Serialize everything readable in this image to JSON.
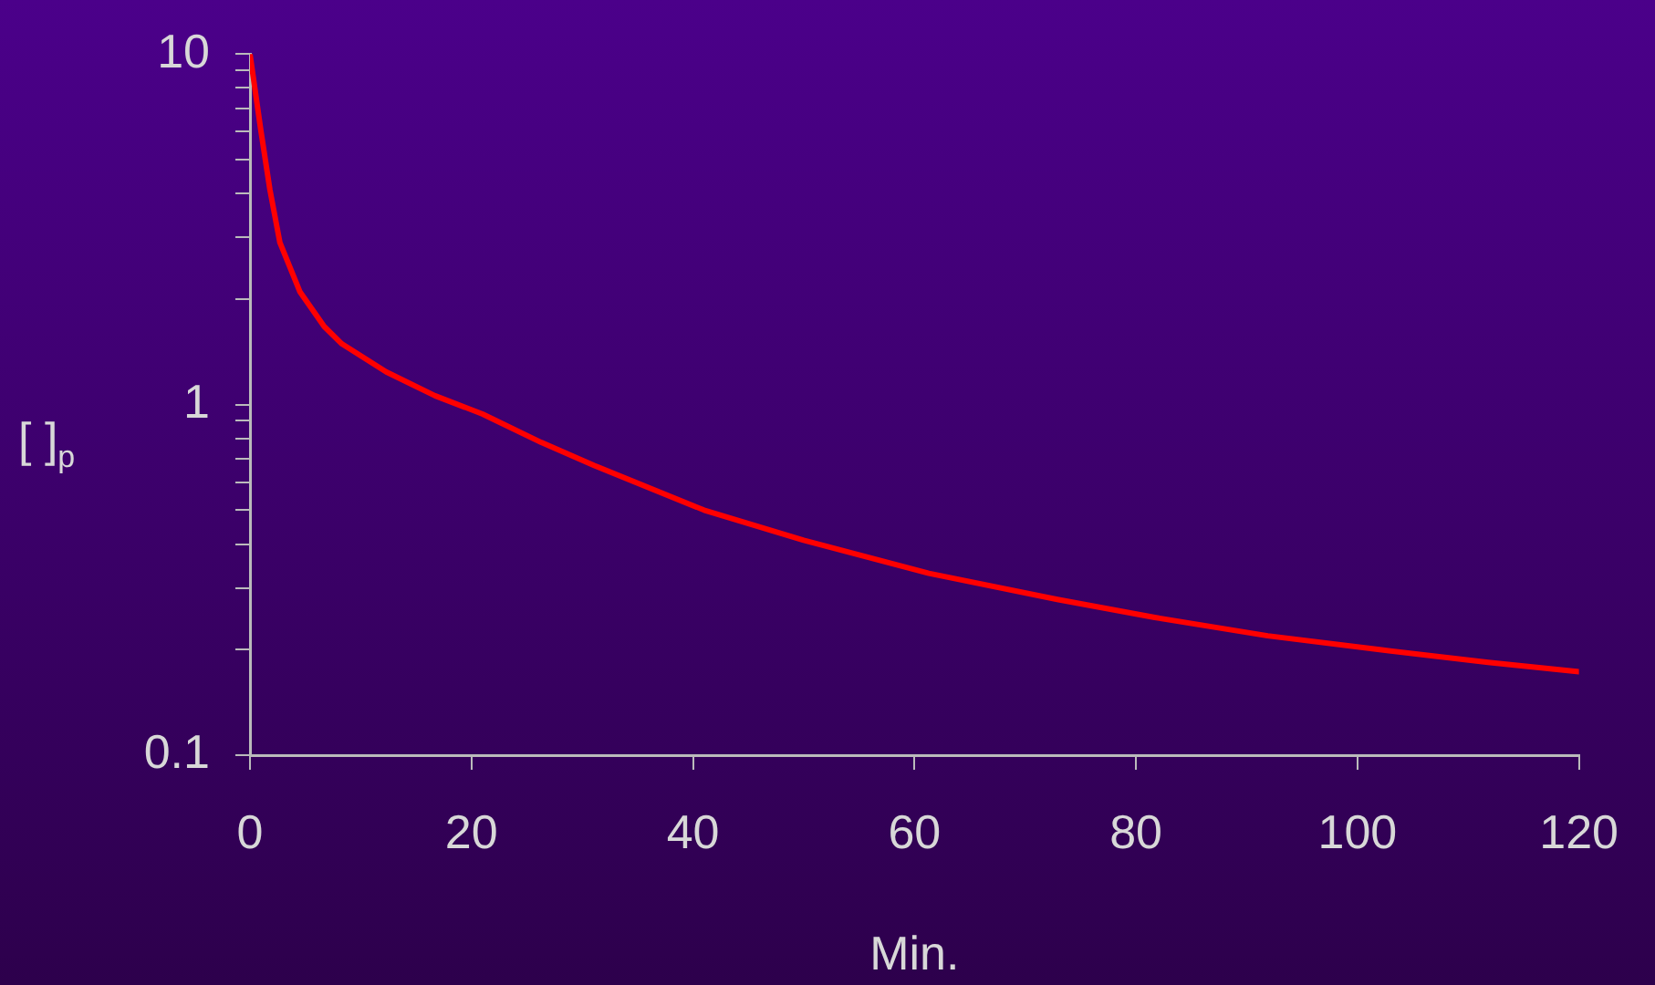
{
  "chart_data": {
    "type": "line",
    "xlabel": "Min.",
    "ylabel": "[ ]$_{p}$",
    "log": "y",
    "grid": false,
    "legend": false,
    "marker": "none",
    "line_style": "solid",
    "x": [
      0,
      1,
      1.8,
      2.7,
      4.5,
      6.7,
      8.3,
      12.3,
      16.7,
      21,
      26.3,
      31.1,
      41,
      50,
      61.3,
      72.9,
      81.7,
      91.9,
      102,
      111.8,
      120
    ],
    "series": [
      {
        "color": "#ff0000",
        "values": [
          10,
          6,
          4.1,
          2.9,
          2.1,
          1.67,
          1.49,
          1.24,
          1.06,
          0.94,
          0.78,
          0.67,
          0.5,
          0.41,
          0.33,
          0.278,
          0.247,
          0.219,
          0.2,
          0.184,
          0.173
        ]
      }
    ],
    "xlim": [
      0,
      120
    ],
    "xticks": [
      0,
      20,
      40,
      60,
      80,
      100,
      120
    ],
    "ylim": [
      0.1,
      10
    ],
    "yticks": [
      0.1,
      {
        "value": 0.2,
        "label": null
      },
      {
        "value": 0.3,
        "label": null
      },
      {
        "value": 0.4,
        "label": null
      },
      {
        "value": 0.5,
        "label": null
      },
      {
        "value": 0.6,
        "label": null
      },
      {
        "value": 0.7,
        "label": null
      },
      {
        "value": 0.8,
        "label": null
      },
      {
        "value": 0.9,
        "label": null
      },
      1,
      {
        "value": 2,
        "label": null
      },
      {
        "value": 3,
        "label": null
      },
      {
        "value": 4,
        "label": null
      },
      {
        "value": 5,
        "label": null
      },
      {
        "value": 6,
        "label": null
      },
      {
        "value": 7,
        "label": null
      },
      {
        "value": 8,
        "label": null
      },
      {
        "value": 9,
        "label": null
      },
      10
    ]
  }
}
